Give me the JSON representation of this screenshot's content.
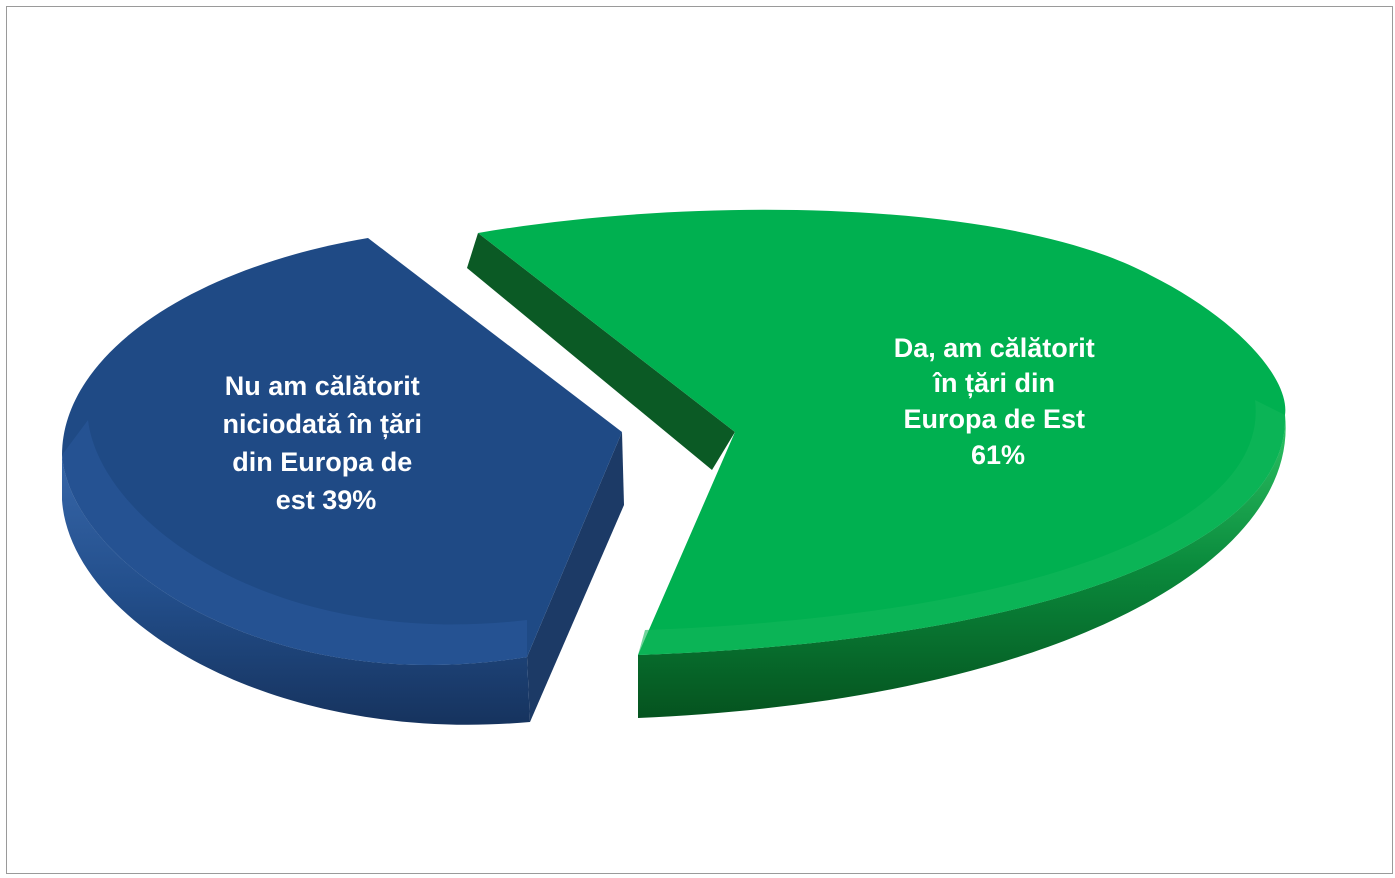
{
  "chart_data": {
    "type": "pie",
    "style": "3d-exploded",
    "title": "",
    "slices": [
      {
        "label_lines": [
          "Da, am călătorit",
          "în țări din",
          "Europa de Est",
          "61%"
        ],
        "value": 61,
        "color": "#00b050",
        "side_color": "#0b5a25",
        "depth_color": "#0a7a34"
      },
      {
        "label_lines": [
          "Nu am călătorit",
          "niciodată în țări",
          "din Europa de",
          "est 39%"
        ],
        "value": 39,
        "color": "#1f4a85",
        "side_color": "#1c3a66",
        "depth_color": "#244f8e"
      }
    ],
    "legend": "none"
  }
}
